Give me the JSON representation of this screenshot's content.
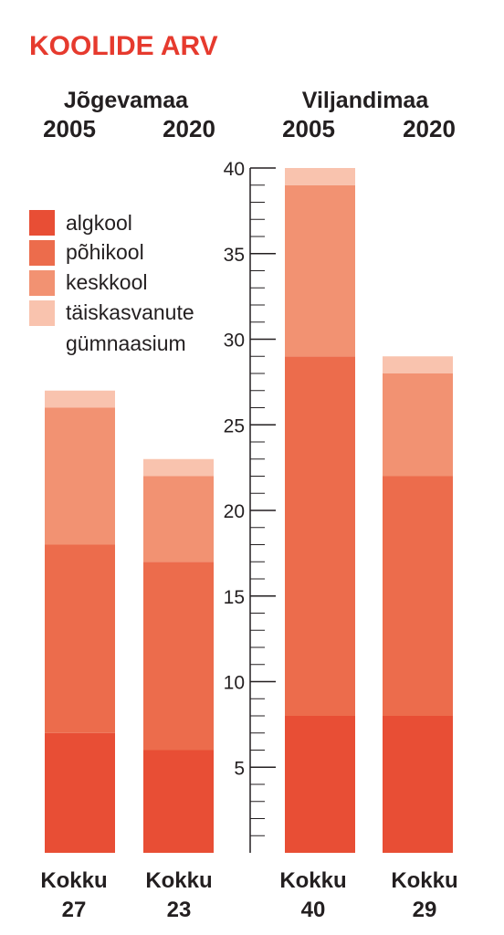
{
  "title": "KOOLIDE ARV",
  "colors": {
    "title": "#e63a2e",
    "text": "#231f20",
    "axis": "#231f20",
    "algkool": "#e84e35",
    "pohikool": "#ec6c4c",
    "keskkool": "#f29272",
    "taiskasvanute": "#f9c3ae"
  },
  "groups": [
    {
      "name": "Jõgevamaa",
      "years": [
        "2005",
        "2020"
      ]
    },
    {
      "name": "Viljandimaa",
      "years": [
        "2005",
        "2020"
      ]
    }
  ],
  "legend": [
    {
      "key": "algkool",
      "label": "algkool",
      "color": "#e84e35"
    },
    {
      "key": "pohikool",
      "label": "põhikool",
      "color": "#ec6c4c"
    },
    {
      "key": "keskkool",
      "label": "keskkool",
      "color": "#f29272"
    },
    {
      "key": "taiskasvanute",
      "label_line1": "täiskasvanute",
      "label_line2": "gümnaasium",
      "color": "#f9c3ae"
    }
  ],
  "totals_label": "Kokku",
  "chart_data": {
    "type": "bar",
    "stacked": true,
    "title": "KOOLIDE ARV",
    "categories": [
      "Jõgevamaa 2005",
      "Jõgevamaa 2020",
      "Viljandimaa 2005",
      "Viljandimaa 2020"
    ],
    "series": [
      {
        "name": "algkool",
        "values": [
          7,
          6,
          8,
          8
        ]
      },
      {
        "name": "põhikool",
        "values": [
          11,
          11,
          21,
          14
        ]
      },
      {
        "name": "keskkool",
        "values": [
          8,
          5,
          10,
          6
        ]
      },
      {
        "name": "täiskasvanute gümnaasium",
        "values": [
          1,
          1,
          1,
          1
        ]
      }
    ],
    "totals": [
      27,
      23,
      40,
      29
    ],
    "ylim": [
      0,
      40
    ],
    "yticks": [
      "5",
      "10",
      "15",
      "20",
      "25",
      "30",
      "35",
      "40"
    ],
    "legend_position": "left",
    "grid": false
  }
}
